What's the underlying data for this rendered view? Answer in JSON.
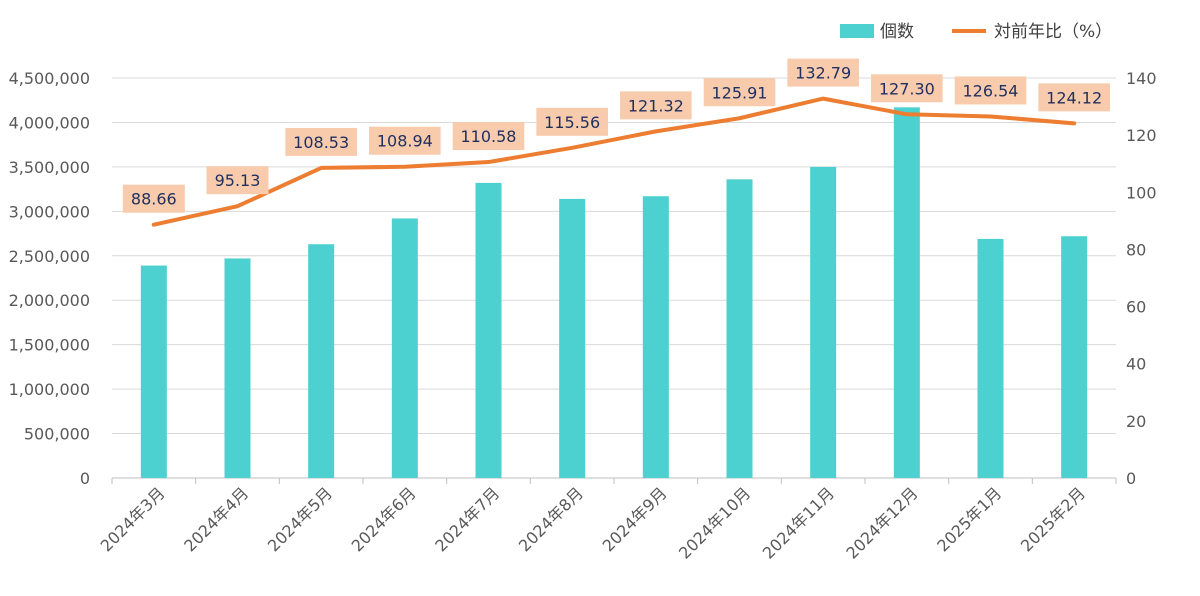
{
  "chart_data": {
    "type": "bar",
    "categories": [
      "2024年3月",
      "2024年4月",
      "2024年5月",
      "2024年6月",
      "2024年7月",
      "2024年8月",
      "2024年9月",
      "2024年10月",
      "2024年11月",
      "2024年12月",
      "2025年1月",
      "2025年2月"
    ],
    "series": [
      {
        "name": "個数",
        "type": "bar",
        "axis": "left",
        "color": "#4dd0d0",
        "values": [
          2390000,
          2470000,
          2630000,
          2920000,
          3320000,
          3140000,
          3170000,
          3360000,
          3500000,
          4170000,
          2690000,
          2720000
        ]
      },
      {
        "name": "対前年比（%）",
        "type": "line",
        "axis": "right",
        "color": "#ed7d31",
        "values": [
          88.66,
          95.13,
          108.53,
          108.94,
          110.58,
          115.56,
          121.32,
          125.91,
          132.79,
          127.3,
          126.54,
          124.12
        ],
        "labels": [
          "88.66",
          "95.13",
          "108.53",
          "108.94",
          "110.58",
          "115.56",
          "121.32",
          "125.91",
          "132.79",
          "127.30",
          "126.54",
          "124.12"
        ]
      }
    ],
    "y_left": {
      "ylim": [
        0,
        4500000
      ],
      "ticks": [
        0,
        500000,
        1000000,
        1500000,
        2000000,
        2500000,
        3000000,
        3500000,
        4000000,
        4500000
      ],
      "tick_labels": [
        "0",
        "500,000",
        "1,000,000",
        "1,500,000",
        "2,000,000",
        "2,500,000",
        "3,000,000",
        "3,500,000",
        "4,000,000",
        "4,500,000"
      ]
    },
    "y_right": {
      "ylim": [
        0,
        140
      ],
      "ticks": [
        0,
        20,
        40,
        60,
        80,
        100,
        120,
        140
      ],
      "tick_labels": [
        "0",
        "20",
        "40",
        "60",
        "80",
        "100",
        "120",
        "140"
      ]
    },
    "grid": true,
    "legend_position": "top-right",
    "label_bg_color": "#f8cbad"
  }
}
